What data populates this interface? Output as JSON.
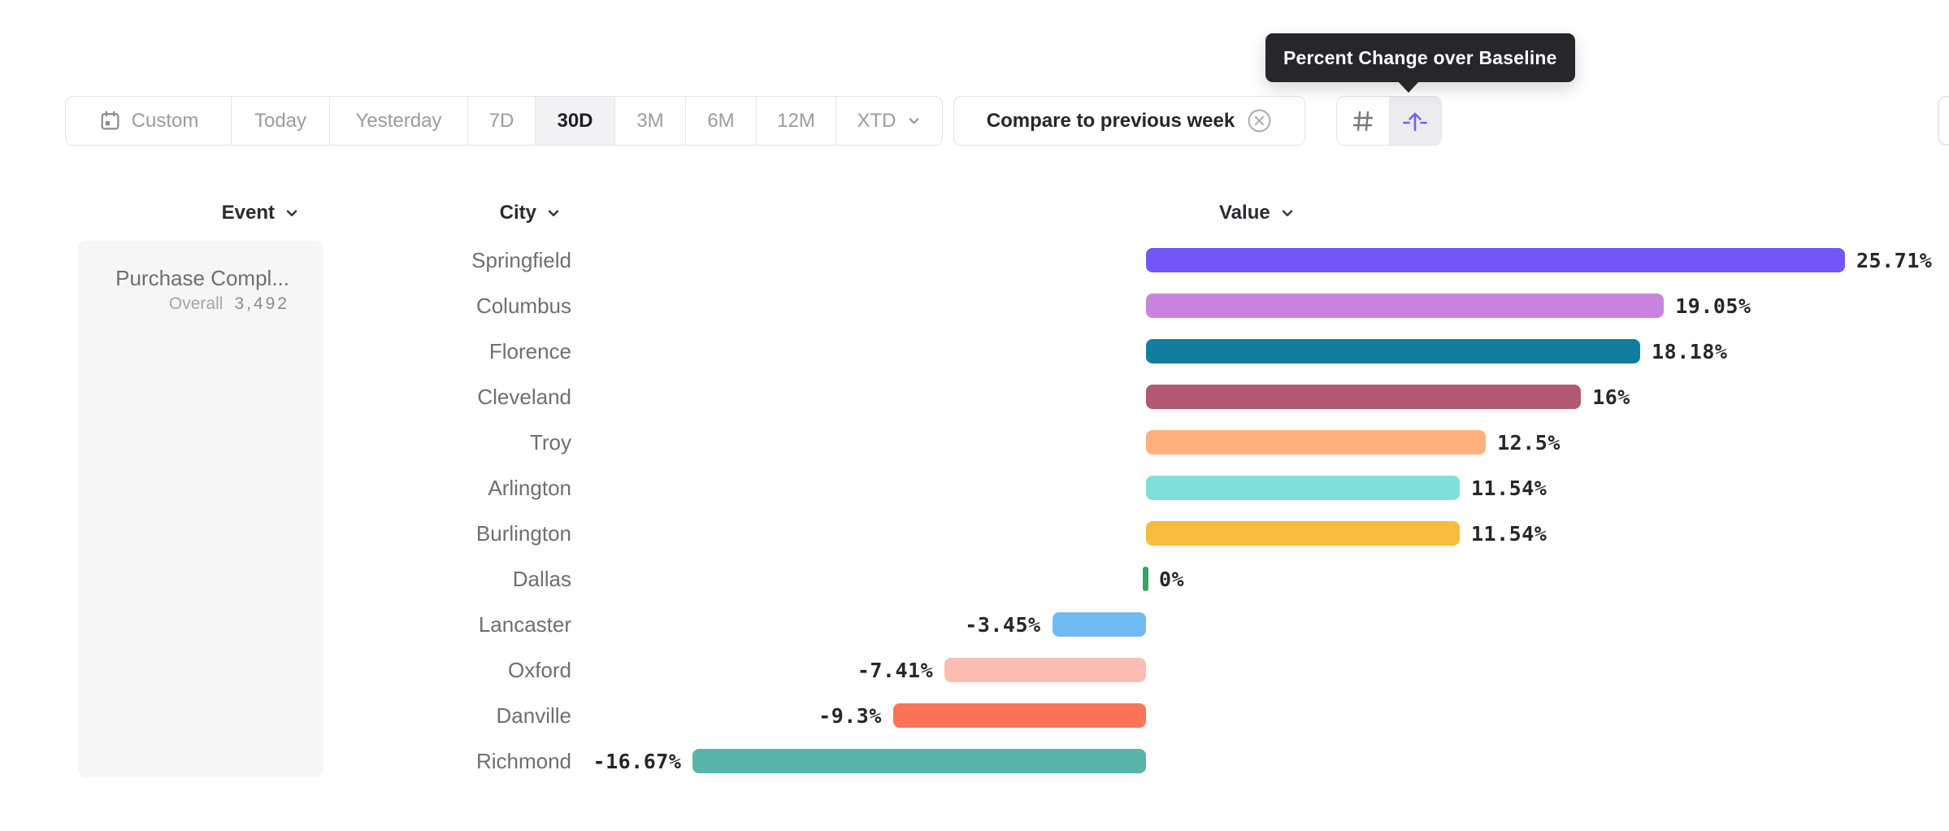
{
  "tooltip": {
    "text": "Percent Change over Baseline"
  },
  "toolbar": {
    "date_buttons": [
      {
        "label": "Custom",
        "icon": "calendar-icon",
        "selected": false
      },
      {
        "label": "Today",
        "selected": false
      },
      {
        "label": "Yesterday",
        "selected": false
      },
      {
        "label": "7D",
        "selected": false
      },
      {
        "label": "30D",
        "selected": true
      },
      {
        "label": "3M",
        "selected": false
      },
      {
        "label": "6M",
        "selected": false
      },
      {
        "label": "12M",
        "selected": false
      },
      {
        "label": "XTD",
        "selected": false,
        "dropdown": true
      }
    ],
    "compare_pill": {
      "label": "Compare to previous week",
      "close_icon": "circle-x-icon"
    },
    "view_toggle": [
      {
        "name": "absolute-numbers-view",
        "icon": "hash-icon",
        "selected": false
      },
      {
        "name": "percent-change-view",
        "icon": "baseline-arrow-icon",
        "selected": true
      }
    ]
  },
  "columns": {
    "event": "Event",
    "city": "City",
    "value": "Value"
  },
  "event_panel": {
    "title": "Purchase Compl...",
    "overall_label": "Overall",
    "overall_value": "3,492"
  },
  "chart_data": {
    "type": "bar",
    "orientation": "horizontal",
    "title": "Percent Change over Baseline",
    "value_unit": "%",
    "baseline": 0,
    "categories": [
      "Springfield",
      "Columbus",
      "Florence",
      "Cleveland",
      "Troy",
      "Arlington",
      "Burlington",
      "Dallas",
      "Lancaster",
      "Oxford",
      "Danville",
      "Richmond"
    ],
    "values": [
      25.71,
      19.05,
      18.18,
      16,
      12.5,
      11.54,
      11.54,
      0,
      -3.45,
      -7.41,
      -9.3,
      -16.67
    ],
    "value_labels": [
      "25.71%",
      "19.05%",
      "18.18%",
      "16%",
      "12.5%",
      "11.54%",
      "11.54%",
      "0%",
      "-3.45%",
      "-7.41%",
      "-9.3%",
      "-16.67%"
    ],
    "bar_colors": [
      "#7256f7",
      "#c983de",
      "#117da1",
      "#b15970",
      "#feb17d",
      "#81dfd9",
      "#f7bc3b",
      "#36a469",
      "#70bbf1",
      "#fdbdb4",
      "#fc7357",
      "#57b5aa"
    ]
  },
  "colors": {
    "accent_purple": "#7a5af8",
    "tooltip_bg": "#26262b",
    "border": "#e3e3e6",
    "selected_bg": "#f2f2f4",
    "panel_bg": "#f6f6f7",
    "text_dark": "#26262b",
    "text_gray": "#9b9ba1",
    "text_city": "#6e6e73",
    "zero_tick_green": "#36a469"
  }
}
